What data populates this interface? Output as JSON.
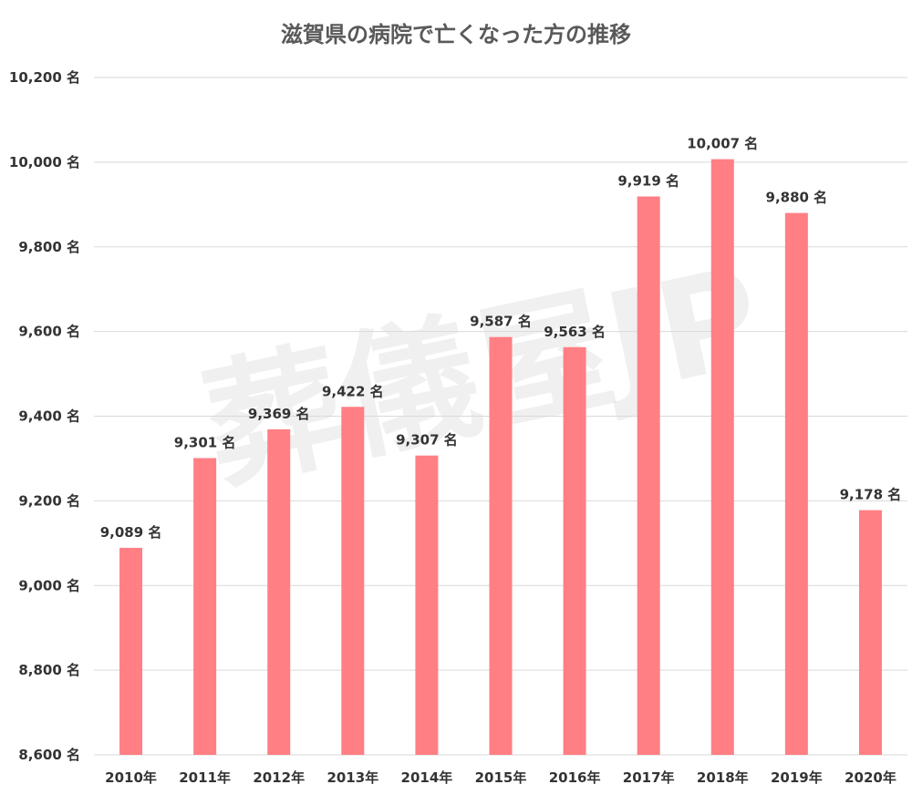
{
  "chart_data": {
    "type": "bar",
    "title": "滋賀県の病院で亡くなった方の推移",
    "categories": [
      "2010年",
      "2011年",
      "2012年",
      "2013年",
      "2014年",
      "2015年",
      "2016年",
      "2017年",
      "2018年",
      "2019年",
      "2020年"
    ],
    "values": [
      9089,
      9301,
      9369,
      9422,
      9307,
      9587,
      9563,
      9919,
      10007,
      9880,
      9178
    ],
    "data_labels": [
      "9,089 名",
      "9,301 名",
      "9,369 名",
      "9,422 名",
      "9,307 名",
      "9,587 名",
      "9,563 名",
      "9,919 名",
      "10,007 名",
      "9,880 名",
      "9,178 名"
    ],
    "y_ticks": [
      8600,
      8800,
      9000,
      9200,
      9400,
      9600,
      9800,
      10000,
      10200
    ],
    "y_tick_labels": [
      "8,600 名",
      "8,800 名",
      "9,000 名",
      "9,200 名",
      "9,400 名",
      "9,600 名",
      "9,800 名",
      "10,000 名",
      "10,200 名"
    ],
    "ylim": [
      8600,
      10200
    ],
    "xlabel": "",
    "ylabel": "",
    "grid": true,
    "bar_color": "#ff7f84"
  },
  "watermark": "葬儀屋JP"
}
